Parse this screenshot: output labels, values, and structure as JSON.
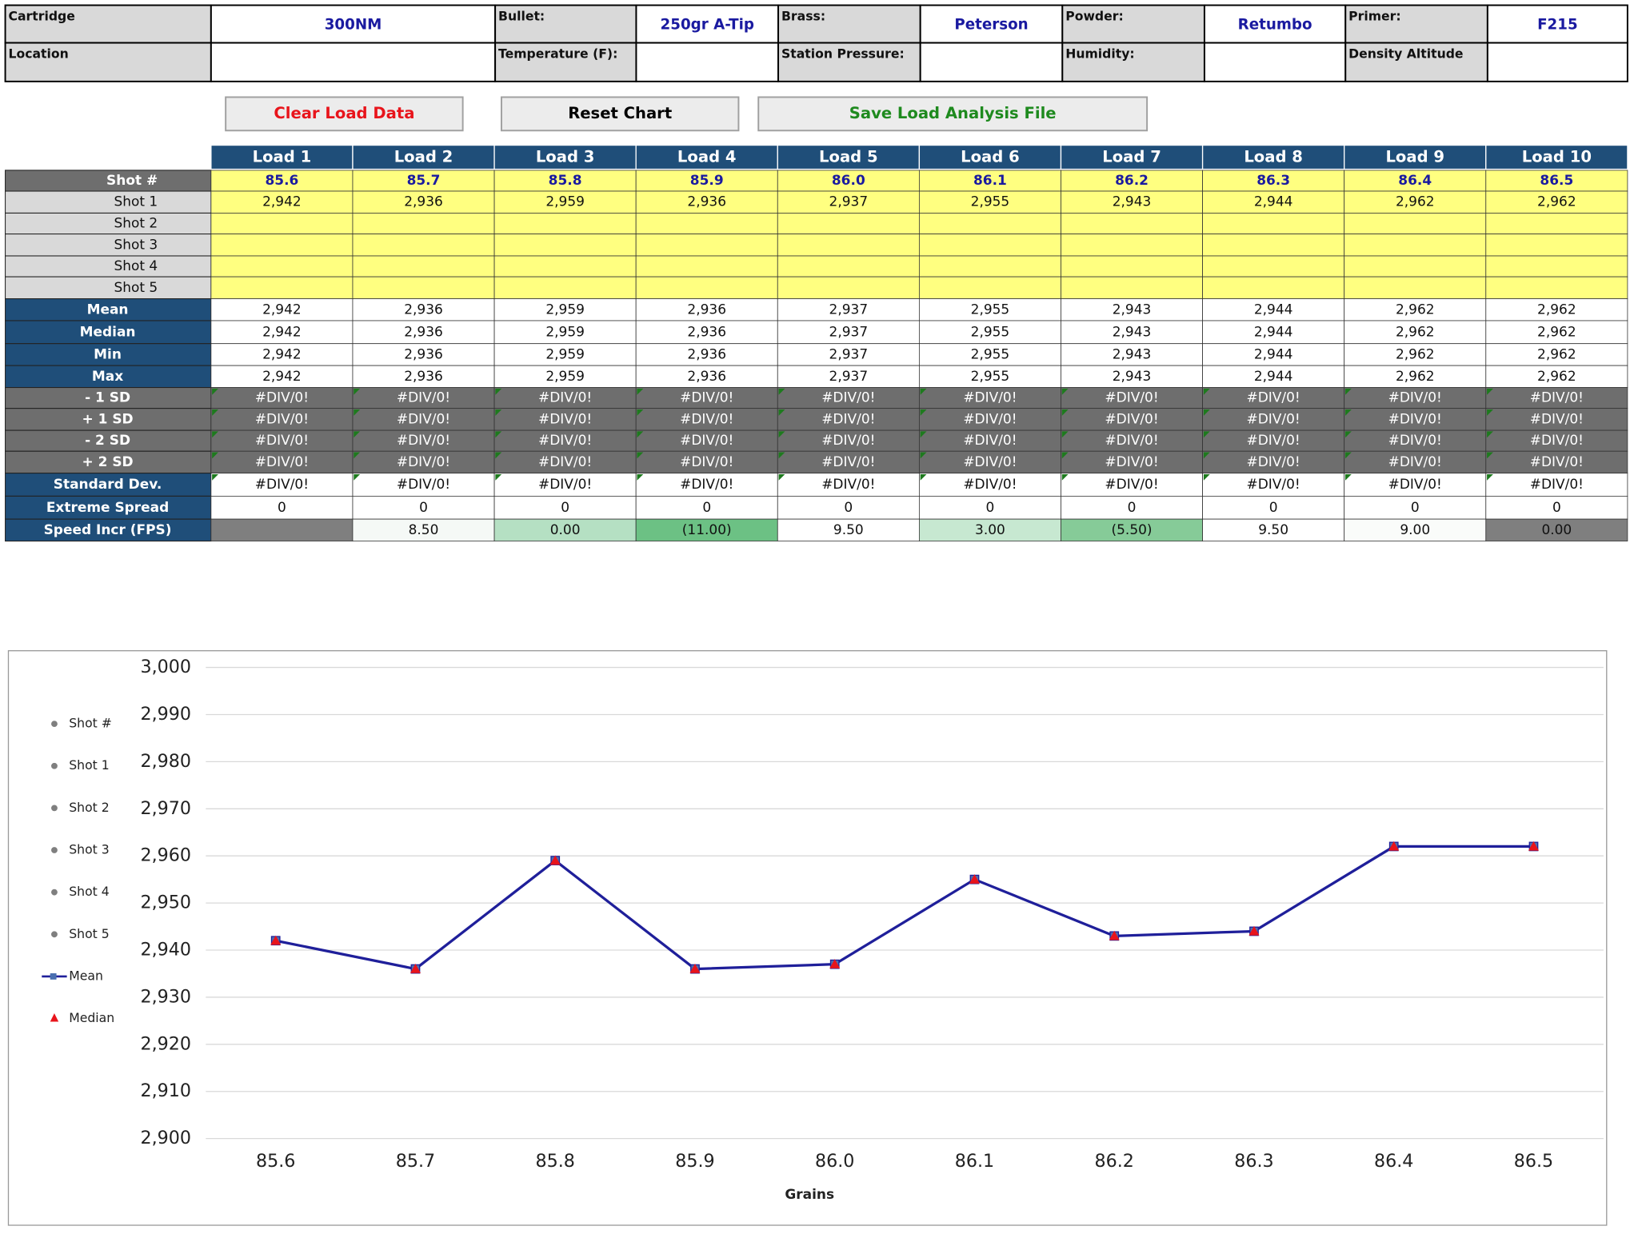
{
  "header": {
    "fields": [
      {
        "label": "Cartridge",
        "value": "300NM"
      },
      {
        "label": "Bullet:",
        "value": "250gr A-Tip"
      },
      {
        "label": "Brass:",
        "value": "Peterson"
      },
      {
        "label": "Powder:",
        "value": "Retumbo"
      },
      {
        "label": "Primer:",
        "value": "F215"
      }
    ],
    "fields2": [
      "Location",
      "Temperature (F):",
      "Station Pressure:",
      "Humidity:",
      "Density Altitude"
    ]
  },
  "buttons": [
    {
      "label": "Clear Load Data",
      "color": "#e8141b"
    },
    {
      "label": "Reset Chart",
      "color": "#000000"
    },
    {
      "label": "Save Load Analysis File",
      "color": "#1e8a1e"
    }
  ],
  "table": {
    "columns": [
      "Load 1",
      "Load 2",
      "Load 3",
      "Load 4",
      "Load 5",
      "Load 6",
      "Load 7",
      "Load 8",
      "Load 9",
      "Load 10"
    ],
    "rows": [
      {
        "label": "Shot #",
        "cells": [
          "85.6",
          "85.7",
          "85.8",
          "85.9",
          "86.0",
          "86.1",
          "86.2",
          "86.3",
          "86.4",
          "86.5"
        ]
      },
      {
        "label": "Shot 1",
        "cells": [
          "2,942",
          "2,936",
          "2,959",
          "2,936",
          "2,937",
          "2,955",
          "2,943",
          "2,944",
          "2,962",
          "2,962"
        ]
      },
      {
        "label": "Shot 2"
      },
      {
        "label": "Shot 3"
      },
      {
        "label": "Shot 4"
      },
      {
        "label": "Shot 5"
      },
      {
        "label": "Mean",
        "cells": [
          "2,942",
          "2,936",
          "2,959",
          "2,936",
          "2,937",
          "2,955",
          "2,943",
          "2,944",
          "2,962",
          "2,962"
        ]
      },
      {
        "label": "Median",
        "cells": [
          "2,942",
          "2,936",
          "2,959",
          "2,936",
          "2,937",
          "2,955",
          "2,943",
          "2,944",
          "2,962",
          "2,962"
        ]
      },
      {
        "label": "Min",
        "cells": [
          "2,942",
          "2,936",
          "2,959",
          "2,936",
          "2,937",
          "2,955",
          "2,943",
          "2,944",
          "2,962",
          "2,962"
        ]
      },
      {
        "label": "Max",
        "cells": [
          "2,942",
          "2,936",
          "2,959",
          "2,936",
          "2,937",
          "2,955",
          "2,943",
          "2,944",
          "2,962",
          "2,962"
        ]
      },
      {
        "label": "- 1 SD",
        "cells": [
          "#DIV/0!",
          "#DIV/0!",
          "#DIV/0!",
          "#DIV/0!",
          "#DIV/0!",
          "#DIV/0!",
          "#DIV/0!",
          "#DIV/0!",
          "#DIV/0!",
          "#DIV/0!"
        ]
      },
      {
        "label": "+ 1 SD",
        "cells": [
          "#DIV/0!",
          "#DIV/0!",
          "#DIV/0!",
          "#DIV/0!",
          "#DIV/0!",
          "#DIV/0!",
          "#DIV/0!",
          "#DIV/0!",
          "#DIV/0!",
          "#DIV/0!"
        ]
      },
      {
        "label": "- 2 SD",
        "cells": [
          "#DIV/0!",
          "#DIV/0!",
          "#DIV/0!",
          "#DIV/0!",
          "#DIV/0!",
          "#DIV/0!",
          "#DIV/0!",
          "#DIV/0!",
          "#DIV/0!",
          "#DIV/0!"
        ]
      },
      {
        "label": "+ 2 SD",
        "cells": [
          "#DIV/0!",
          "#DIV/0!",
          "#DIV/0!",
          "#DIV/0!",
          "#DIV/0!",
          "#DIV/0!",
          "#DIV/0!",
          "#DIV/0!",
          "#DIV/0!",
          "#DIV/0!"
        ]
      },
      {
        "label": "Standard Dev.",
        "cells": [
          "#DIV/0!",
          "#DIV/0!",
          "#DIV/0!",
          "#DIV/0!",
          "#DIV/0!",
          "#DIV/0!",
          "#DIV/0!",
          "#DIV/0!",
          "#DIV/0!",
          "#DIV/0!"
        ]
      },
      {
        "label": "Extreme Spread",
        "cells": [
          "0",
          "0",
          "0",
          "0",
          "0",
          "0",
          "0",
          "0",
          "0",
          "0"
        ]
      },
      {
        "label": "Speed Incr (FPS)",
        "cells": [
          null,
          "8.50",
          "0.00",
          "(11.00)",
          "9.50",
          "3.00",
          "(5.50)",
          "9.50",
          "9.00",
          "0.00"
        ],
        "colors": [
          "#7f7f7f",
          "#f5f9f6",
          "#b5e0c3",
          "#6cc184",
          "#ffffff",
          "#c7e8d1",
          "#86cb98",
          "#ffffff",
          "#fafcfa",
          "#7f7f7f"
        ]
      }
    ]
  },
  "chart_data": {
    "type": "line",
    "categories": [
      "85.6",
      "85.7",
      "85.8",
      "85.9",
      "86.0",
      "86.1",
      "86.2",
      "86.3",
      "86.4",
      "86.5"
    ],
    "xlabel": "Grains",
    "ylim": [
      2900,
      3000
    ],
    "yticks": [
      {
        "value": 2900,
        "label": "2,900"
      },
      {
        "value": 2910,
        "label": "2,910"
      },
      {
        "value": 2920,
        "label": "2,920"
      },
      {
        "value": 2930,
        "label": "2,930"
      },
      {
        "value": 2940,
        "label": "2,940"
      },
      {
        "value": 2950,
        "label": "2,950"
      },
      {
        "value": 2960,
        "label": "2,960"
      },
      {
        "value": 2970,
        "label": "2,970"
      },
      {
        "value": 2980,
        "label": "2,980"
      },
      {
        "value": 2990,
        "label": "2,990"
      },
      {
        "value": 3000,
        "label": "3,000"
      }
    ],
    "grid": true,
    "series": [
      {
        "name": "Shot #",
        "color": "#7f7f7f",
        "marker": "circle",
        "values": [
          null,
          null,
          null,
          null,
          null,
          null,
          null,
          null,
          null,
          null
        ]
      },
      {
        "name": "Shot 1",
        "color": "#7f7f7f",
        "marker": "circle",
        "values": [
          2942,
          2936,
          2959,
          2936,
          2937,
          2955,
          2943,
          2944,
          2962,
          2962
        ]
      },
      {
        "name": "Shot 2",
        "color": "#7f7f7f",
        "marker": "circle",
        "values": [
          null,
          null,
          null,
          null,
          null,
          null,
          null,
          null,
          null,
          null
        ]
      },
      {
        "name": "Shot 3",
        "color": "#7f7f7f",
        "marker": "circle",
        "values": [
          null,
          null,
          null,
          null,
          null,
          null,
          null,
          null,
          null,
          null
        ]
      },
      {
        "name": "Shot 4",
        "color": "#7f7f7f",
        "marker": "circle",
        "values": [
          null,
          null,
          null,
          null,
          null,
          null,
          null,
          null,
          null,
          null
        ]
      },
      {
        "name": "Shot 5",
        "color": "#7f7f7f",
        "marker": "circle",
        "values": [
          null,
          null,
          null,
          null,
          null,
          null,
          null,
          null,
          null,
          null
        ]
      },
      {
        "name": "Mean",
        "color": "#1f1f9a",
        "marker": "square",
        "line": true,
        "values": [
          2942,
          2936,
          2959,
          2936,
          2937,
          2955,
          2943,
          2944,
          2962,
          2962
        ]
      },
      {
        "name": "Median",
        "color": "#e8141b",
        "marker": "triangle",
        "values": [
          2942,
          2936,
          2959,
          2936,
          2937,
          2955,
          2943,
          2944,
          2962,
          2962
        ]
      }
    ]
  }
}
